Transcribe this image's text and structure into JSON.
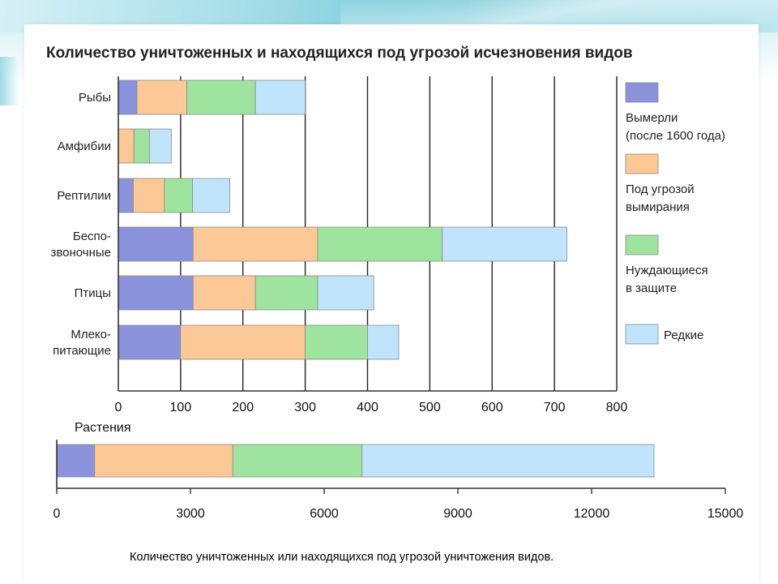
{
  "chart_data": [
    {
      "type": "bar",
      "orientation": "horizontal",
      "stacked": true,
      "title": "Количество уничтоженных и находящихся под угрозой исчезновения видов",
      "categories": [
        [
          "Рыбы"
        ],
        [
          "Амфибии"
        ],
        [
          "Рептилии"
        ],
        [
          "Беспо-",
          "звоночные"
        ],
        [
          "Птицы"
        ],
        [
          "Млеко-",
          "питающие"
        ]
      ],
      "series": [
        {
          "name": "Вымерли (после 1600 года)",
          "color": "#8b93dc",
          "values": [
            30,
            0,
            24,
            120,
            120,
            100
          ]
        },
        {
          "name": "Под угрозой вымирания",
          "color": "#fcc896",
          "values": [
            80,
            25,
            50,
            200,
            100,
            200
          ]
        },
        {
          "name": "Нуждающиеся в защите",
          "color": "#9ee49e",
          "values": [
            110,
            25,
            45,
            200,
            100,
            100
          ]
        },
        {
          "name": "Редкие",
          "color": "#bfe4fb",
          "values": [
            80,
            35,
            60,
            200,
            90,
            50
          ]
        }
      ],
      "xlim": [
        0,
        800
      ],
      "xticks": [
        0,
        100,
        200,
        300,
        400,
        500,
        600,
        700,
        800
      ],
      "grid": true
    },
    {
      "type": "bar",
      "orientation": "horizontal",
      "stacked": true,
      "title": "Растения",
      "categories": [
        "Растения"
      ],
      "series": [
        {
          "name": "Вымерли (после 1600 года)",
          "color": "#8b93dc",
          "values": [
            850
          ]
        },
        {
          "name": "Под угрозой вымирания",
          "color": "#fcc896",
          "values": [
            3100
          ]
        },
        {
          "name": "Нуждающиеся в защите",
          "color": "#9ee49e",
          "values": [
            2900
          ]
        },
        {
          "name": "Редкие",
          "color": "#bfe4fb",
          "values": [
            6550
          ]
        }
      ],
      "xlim": [
        0,
        15000
      ],
      "xticks": [
        0,
        3000,
        6000,
        9000,
        12000,
        15000
      ],
      "grid": false
    }
  ],
  "legend": [
    {
      "lines": [
        "Вымерли",
        "(после 1600 года)"
      ],
      "color": "#8b93dc"
    },
    {
      "lines": [
        "Под угрозой",
        "вымирания"
      ],
      "color": "#fcc896"
    },
    {
      "lines": [
        "Нуждающиеся",
        "в защите"
      ],
      "color": "#9ee49e"
    },
    {
      "lines": [
        "Редкие"
      ],
      "color": "#bfe4fb"
    }
  ],
  "caption": "Количество уничтоженных или находящихся под угрозой  уничтожения видов.",
  "colors": {
    "axis": "#333333",
    "grid": "#222222",
    "bar_stroke": "#8a8a8a"
  }
}
